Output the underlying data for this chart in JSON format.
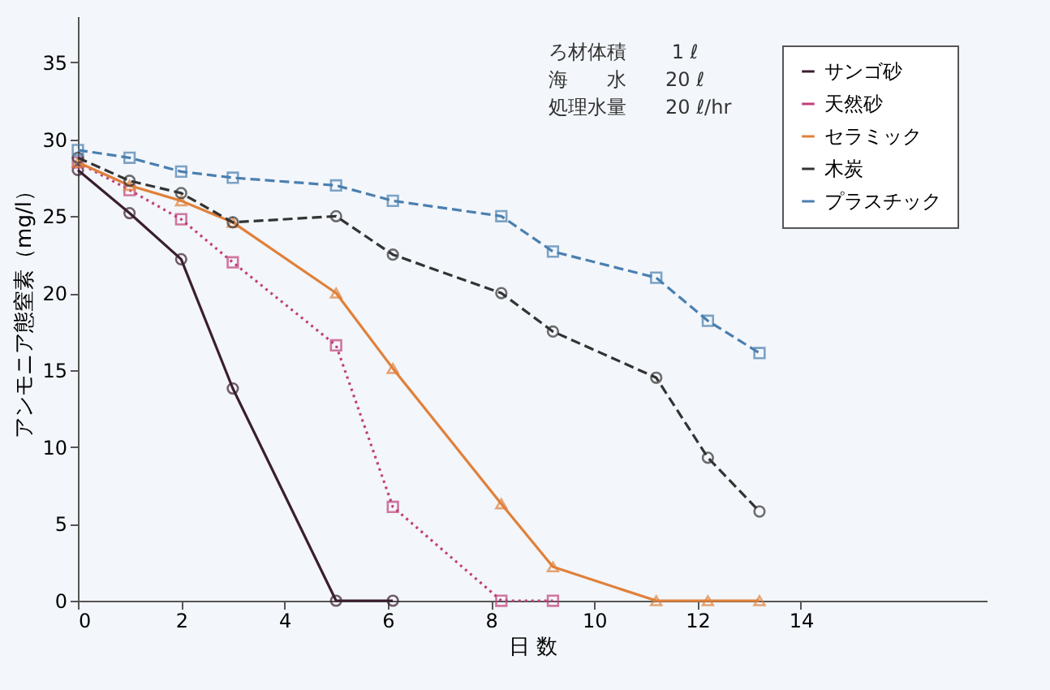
{
  "chart_data": {
    "type": "line",
    "xlabel": "日 数",
    "ylabel": "アンモニア態窒素（mg/l）",
    "annotations": [
      "ろ材体積　　 1 ℓ",
      "海　　水　　20 ℓ",
      "処理水量　　20 ℓ/hr"
    ],
    "x": [
      0,
      1,
      2,
      3,
      5,
      6.1,
      8.2,
      9.2,
      11.2,
      12.2,
      13.2
    ],
    "series": [
      {
        "name": "サンゴ砂",
        "color": "#3a1f2e",
        "marker": "circle",
        "line_style": "solid",
        "values": [
          28,
          25.2,
          22.2,
          13.8,
          0,
          0,
          null,
          null,
          null,
          null,
          null
        ]
      },
      {
        "name": "天然砂",
        "color": "#c0407a",
        "marker": "square",
        "line_style": "dotted",
        "values": [
          28.5,
          26.7,
          24.8,
          22,
          16.6,
          6.1,
          0,
          0,
          null,
          null,
          null
        ]
      },
      {
        "name": "セラミック",
        "color": "#e0803a",
        "marker": "triangle",
        "line_style": "solid",
        "values": [
          28.5,
          27,
          26,
          24.6,
          20,
          15.1,
          6.3,
          2.2,
          0,
          0,
          0
        ]
      },
      {
        "name": "木炭",
        "color": "#333333",
        "marker": "circle",
        "line_style": "dashed",
        "values": [
          28.8,
          27.3,
          26.5,
          24.6,
          25,
          22.5,
          20,
          17.5,
          14.5,
          9.3,
          5.8
        ]
      },
      {
        "name": "プラスチック",
        "color": "#4a7fb0",
        "marker": "square",
        "line_style": "dashed",
        "values": [
          29.3,
          28.8,
          27.9,
          27.5,
          27,
          26,
          25,
          22.7,
          21,
          18.2,
          16.1
        ]
      }
    ],
    "xlim": [
      0,
      17.6
    ],
    "ylim": [
      0,
      38
    ],
    "xticks": [
      0,
      2,
      4,
      6,
      8,
      10,
      12,
      14
    ],
    "yticks": [
      0,
      5,
      10,
      15,
      20,
      25,
      30,
      35
    ],
    "grid": false,
    "legend": "top right"
  }
}
